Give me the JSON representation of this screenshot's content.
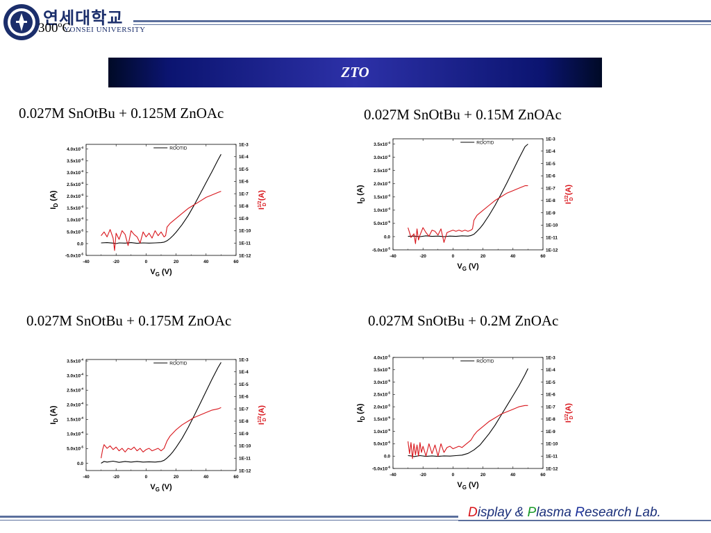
{
  "header": {
    "university_kr": "연세대학교",
    "university_en": "YONSEI UNIVERSITY",
    "temperature": "300ºC",
    "banner_title": "ZTO"
  },
  "footer": {
    "lab_d": "D",
    "lab_isplay": "isplay & ",
    "lab_p": "P",
    "lab_lasma": "lasma ",
    "lab_r": "R",
    "lab_esearch": "esearch Lab."
  },
  "colors": {
    "id_curve": "#000000",
    "sqrt_curve": "#d8141a",
    "banner": "#2d31a8",
    "accent": "#1a2f7a"
  },
  "chart_data": [
    {
      "type": "line",
      "title": "0.027M SnOtBu + 0.125M ZnOAc",
      "xlabel_main": "V",
      "xlabel_sub": "G",
      "xlabel_unit": " (V)",
      "ylabel_main": "I",
      "ylabel_sub": "D",
      "ylabel_unit": " (A)",
      "y2label_main": "I",
      "y2label_sup": "1/2",
      "y2label_sub": "D",
      "y2label_unit": " (A)",
      "legend": "ROOTID",
      "xlim": [
        -40,
        60
      ],
      "ylim": [
        -5e-05,
        0.00042
      ],
      "x_ticks": [
        -40,
        -20,
        0,
        20,
        40,
        60
      ],
      "y_ticks": [
        -5e-05,
        0,
        5e-05,
        0.0001,
        0.00015,
        0.0002,
        0.00025,
        0.0003,
        0.00035,
        0.0004
      ],
      "y_tick_labels": [
        {
          "m": "-5.0x10",
          "e": "-5"
        },
        {
          "m": "0.0",
          "e": ""
        },
        {
          "m": "5.0x10",
          "e": "-5"
        },
        {
          "m": "1.0x10",
          "e": "-4"
        },
        {
          "m": "1.5x10",
          "e": "-4"
        },
        {
          "m": "2.0x10",
          "e": "-4"
        },
        {
          "m": "2.5x10",
          "e": "-4"
        },
        {
          "m": "3.0x10",
          "e": "-4"
        },
        {
          "m": "3.5x10",
          "e": "-4"
        },
        {
          "m": "4.0x10",
          "e": "-4"
        }
      ],
      "y2_exps": [
        -12,
        -3
      ],
      "y2_tick_labels": [
        "1E-12",
        "1E-11",
        "1E-10",
        "1E-9",
        "1E-8",
        "1E-7",
        "1E-6",
        "1E-5",
        "1E-4",
        "1E-3"
      ],
      "series": [
        {
          "name": "ID (linear)",
          "axis": "left",
          "color": "#000000",
          "x": [
            -30,
            -26,
            -22,
            -20,
            -18,
            -14,
            -10,
            -6,
            -2,
            2,
            6,
            10,
            12,
            14,
            16,
            18,
            20,
            24,
            28,
            32,
            36,
            40,
            44,
            48,
            50
          ],
          "y": [
            3e-06,
            4e-06,
            2e-06,
            0,
            3e-06,
            2e-06,
            4e-06,
            1e-06,
            3e-06,
            2e-06,
            3e-06,
            4e-06,
            6e-06,
            1.2e-05,
            2.2e-05,
            3.4e-05,
            4.8e-05,
            8e-05,
            0.000118,
            0.000162,
            0.00021,
            0.000258,
            0.000305,
            0.000355,
            0.000378
          ]
        },
        {
          "name": "ID^1/2 (log)",
          "axis": "right",
          "color": "#d8141a",
          "x": [
            -30,
            -28,
            -26,
            -24,
            -22,
            -21,
            -20,
            -18,
            -16,
            -14,
            -12,
            -10,
            -8,
            -6,
            -4,
            -2,
            0,
            2,
            4,
            6,
            8,
            10,
            12,
            13,
            14,
            16,
            20,
            24,
            28,
            32,
            36,
            40,
            44,
            48,
            50
          ],
          "y": [
            -10.4,
            -10.1,
            -10.5,
            -9.9,
            -10.6,
            -11.6,
            -10.2,
            -10.7,
            -10.0,
            -10.3,
            -11.2,
            -10.0,
            -10.3,
            -10.5,
            -11.0,
            -10.1,
            -10.5,
            -10.2,
            -10.6,
            -10.0,
            -10.4,
            -10.1,
            -10.5,
            -10.4,
            -9.7,
            -9.4,
            -9.0,
            -8.6,
            -8.2,
            -7.9,
            -7.6,
            -7.3,
            -7.1,
            -6.9,
            -6.8
          ]
        }
      ]
    },
    {
      "type": "line",
      "title": "0.027M SnOtBu + 0.15M ZnOAc",
      "xlabel_main": "V",
      "xlabel_sub": "G",
      "xlabel_unit": " (V)",
      "ylabel_main": "I",
      "ylabel_sub": "D",
      "ylabel_unit": " (A)",
      "y2label_main": "I",
      "y2label_sup": "1/2",
      "y2label_sub": "D",
      "y2label_unit": " (A)",
      "legend": "ROOTID",
      "xlim": [
        -40,
        60
      ],
      "ylim": [
        -5e-05,
        0.00037
      ],
      "x_ticks": [
        -40,
        -20,
        0,
        20,
        40,
        60
      ],
      "y_ticks": [
        -5e-05,
        0,
        5e-05,
        0.0001,
        0.00015,
        0.0002,
        0.00025,
        0.0003,
        0.00035
      ],
      "y_tick_labels": [
        {
          "m": "-5.0x10",
          "e": "-5"
        },
        {
          "m": "0.0",
          "e": ""
        },
        {
          "m": "5.0x10",
          "e": "-5"
        },
        {
          "m": "1.0x10",
          "e": "-4"
        },
        {
          "m": "1.5x10",
          "e": "-4"
        },
        {
          "m": "2.0x10",
          "e": "-4"
        },
        {
          "m": "2.5x10",
          "e": "-4"
        },
        {
          "m": "3.0x10",
          "e": "-4"
        },
        {
          "m": "3.5x10",
          "e": "-4"
        }
      ],
      "y2_exps": [
        -12,
        -3
      ],
      "y2_tick_labels": [
        "1E-12",
        "1E-11",
        "1E-10",
        "1E-9",
        "1E-8",
        "1E-7",
        "1E-6",
        "1E-5",
        "1E-4",
        "1E-3"
      ],
      "series": [
        {
          "name": "ID (linear)",
          "axis": "left",
          "color": "#000000",
          "x": [
            -30,
            -26,
            -22,
            -18,
            -14,
            -10,
            -6,
            -2,
            2,
            6,
            10,
            12,
            14,
            16,
            18,
            20,
            24,
            28,
            32,
            36,
            40,
            44,
            48,
            50
          ],
          "y": [
            1e-06,
            2e-06,
            0,
            3e-06,
            1e-06,
            2e-06,
            0,
            2e-06,
            1e-06,
            3e-06,
            2e-06,
            4e-06,
            9e-06,
            2e-05,
            3.2e-05,
            4.6e-05,
            8e-05,
            0.000118,
            0.00016,
            0.000204,
            0.00025,
            0.000296,
            0.00034,
            0.00035
          ]
        },
        {
          "name": "ID^1/2 (log)",
          "axis": "right",
          "color": "#d8141a",
          "x": [
            -30,
            -29,
            -28,
            -26,
            -25,
            -24,
            -23,
            -22,
            -20,
            -18,
            -16,
            -14,
            -12,
            -10,
            -8,
            -6,
            -4,
            -2,
            0,
            2,
            4,
            6,
            8,
            10,
            12,
            13,
            14,
            16,
            20,
            24,
            28,
            32,
            36,
            40,
            44,
            48,
            50
          ],
          "y": [
            -10.2,
            -10.6,
            -11.0,
            -10.7,
            -11.5,
            -10.3,
            -11.2,
            -10.8,
            -10.2,
            -10.6,
            -10.9,
            -10.4,
            -10.5,
            -10.8,
            -10.3,
            -11.4,
            -10.6,
            -10.5,
            -10.4,
            -10.5,
            -10.4,
            -10.5,
            -10.4,
            -10.5,
            -10.4,
            -10.3,
            -9.6,
            -9.2,
            -8.8,
            -8.4,
            -8.0,
            -7.7,
            -7.4,
            -7.2,
            -7.0,
            -6.8,
            -6.8
          ]
        }
      ]
    },
    {
      "type": "line",
      "title": "0.027M SnOtBu + 0.175M ZnOAc",
      "xlabel_main": "V",
      "xlabel_sub": "G",
      "xlabel_unit": " (V)",
      "ylabel_main": "I",
      "ylabel_sub": "D",
      "ylabel_unit": " (A)",
      "y2label_main": "I",
      "y2label_sup": "1/2",
      "y2label_sub": "D",
      "y2label_unit": " (A)",
      "legend": "ROOTID",
      "xlim": [
        -40,
        60
      ],
      "ylim": [
        -2.5e-05,
        0.000355
      ],
      "x_ticks": [
        -40,
        -20,
        0,
        20,
        40,
        60
      ],
      "y_ticks": [
        0,
        5e-05,
        0.0001,
        0.00015,
        0.0002,
        0.00025,
        0.0003,
        0.00035
      ],
      "y_tick_labels": [
        {
          "m": "0.0",
          "e": ""
        },
        {
          "m": "5.0x10",
          "e": "-5"
        },
        {
          "m": "1.0x10",
          "e": "-4"
        },
        {
          "m": "1.5x10",
          "e": "-4"
        },
        {
          "m": "2.0x10",
          "e": "-4"
        },
        {
          "m": "2.5x10",
          "e": "-4"
        },
        {
          "m": "3.0x10",
          "e": "-4"
        },
        {
          "m": "3.5x10",
          "e": "-4"
        }
      ],
      "y2_exps": [
        -12,
        -3
      ],
      "y2_tick_labels": [
        "1E-12",
        "1E-11",
        "1E-10",
        "1E-9",
        "1E-8",
        "1E-7",
        "1E-6",
        "1E-5",
        "1E-4",
        "1E-3"
      ],
      "series": [
        {
          "name": "ID (linear)",
          "axis": "left",
          "color": "#000000",
          "x": [
            -30,
            -28,
            -26,
            -22,
            -18,
            -14,
            -10,
            -6,
            -2,
            2,
            6,
            10,
            12,
            14,
            16,
            18,
            20,
            24,
            28,
            32,
            36,
            40,
            44,
            48,
            50
          ],
          "y": [
            0,
            6e-06,
            4e-06,
            7e-06,
            3e-06,
            6e-06,
            4e-06,
            6e-06,
            4e-06,
            5e-06,
            4e-06,
            6e-06,
            1e-05,
            1.8e-05,
            2.8e-05,
            4e-05,
            5.4e-05,
            8.5e-05,
            0.000122,
            0.000162,
            0.000204,
            0.000246,
            0.000288,
            0.000328,
            0.000345
          ]
        },
        {
          "name": "ID^1/2 (log)",
          "axis": "right",
          "color": "#d8141a",
          "x": [
            -30,
            -29,
            -28,
            -26,
            -24,
            -22,
            -20,
            -18,
            -16,
            -14,
            -12,
            -10,
            -8,
            -6,
            -4,
            -2,
            0,
            2,
            4,
            6,
            8,
            10,
            12,
            14,
            16,
            20,
            24,
            28,
            32,
            36,
            40,
            44,
            48,
            50
          ],
          "y": [
            -11.0,
            -10.3,
            -9.9,
            -10.2,
            -10.0,
            -10.3,
            -10.1,
            -10.4,
            -10.2,
            -10.5,
            -10.2,
            -10.3,
            -10.1,
            -10.4,
            -10.2,
            -10.5,
            -10.3,
            -10.2,
            -10.4,
            -10.3,
            -10.2,
            -10.4,
            -10.2,
            -9.6,
            -9.2,
            -8.7,
            -8.3,
            -8.0,
            -7.7,
            -7.5,
            -7.3,
            -7.1,
            -7.0,
            -6.9
          ]
        }
      ]
    },
    {
      "type": "line",
      "title": "0.027M SnOtBu + 0.2M ZnOAc",
      "xlabel_main": "V",
      "xlabel_sub": "G",
      "xlabel_unit": " (V)",
      "ylabel_main": "I",
      "ylabel_sub": "D",
      "ylabel_unit": " (A)",
      "y2label_main": "I",
      "y2label_sup": "1/2",
      "y2label_sub": "D",
      "y2label_unit": " (A)",
      "legend": "ROOTID",
      "xlim": [
        -40,
        60
      ],
      "ylim": [
        -5e-06,
        4e-05
      ],
      "x_ticks": [
        -40,
        -20,
        0,
        20,
        40,
        60
      ],
      "y_ticks": [
        -5e-06,
        0,
        5e-06,
        1e-05,
        1.5e-05,
        2e-05,
        2.5e-05,
        3e-05,
        3.5e-05,
        4e-05
      ],
      "y_tick_labels": [
        {
          "m": "-5.0x10",
          "e": "-6"
        },
        {
          "m": "0.0",
          "e": ""
        },
        {
          "m": "5.0x10",
          "e": "-6"
        },
        {
          "m": "1.0x10",
          "e": "-5"
        },
        {
          "m": "1.5x10",
          "e": "-5"
        },
        {
          "m": "2.0x10",
          "e": "-5"
        },
        {
          "m": "2.5x10",
          "e": "-5"
        },
        {
          "m": "3.0x10",
          "e": "-5"
        },
        {
          "m": "3.5x10",
          "e": "-5"
        },
        {
          "m": "4.0x10",
          "e": "-5"
        }
      ],
      "y2_exps": [
        -12,
        -3
      ],
      "y2_tick_labels": [
        "1E-12",
        "1E-11",
        "1E-10",
        "1E-9",
        "1E-8",
        "1E-7",
        "1E-6",
        "1E-5",
        "1E-4",
        "1E-3"
      ],
      "series": [
        {
          "name": "ID (linear)",
          "axis": "left",
          "color": "#000000",
          "x": [
            -30,
            -28,
            -26,
            -22,
            -18,
            -14,
            -10,
            -6,
            -2,
            2,
            6,
            10,
            14,
            18,
            20,
            24,
            28,
            32,
            36,
            40,
            44,
            48,
            50
          ],
          "y": [
            2e-07,
            1e-07,
            -2e-07,
            2e-07,
            -1e-07,
            1e-07,
            -1e-07,
            1e-07,
            0,
            2e-07,
            4e-07,
            1.1e-06,
            2.5e-06,
            4.5e-06,
            6e-06,
            9e-06,
            1.25e-05,
            1.65e-05,
            2.05e-05,
            2.45e-05,
            2.85e-05,
            3.3e-05,
            3.55e-05
          ]
        },
        {
          "name": "ID^1/2 (log)",
          "axis": "right",
          "color": "#d8141a",
          "x": [
            -30,
            -29,
            -28,
            -27,
            -26,
            -25,
            -24,
            -23,
            -22,
            -21,
            -20,
            -18,
            -16,
            -14,
            -12,
            -10,
            -8,
            -6,
            -4,
            -2,
            0,
            2,
            4,
            6,
            8,
            10,
            12,
            14,
            16,
            20,
            24,
            28,
            32,
            36,
            40,
            44,
            48,
            50
          ],
          "y": [
            -9.8,
            -10.8,
            -9.9,
            -11.2,
            -10.0,
            -10.9,
            -10.1,
            -11.0,
            -9.9,
            -10.7,
            -10.2,
            -11.0,
            -10.0,
            -10.8,
            -10.1,
            -11.0,
            -10.0,
            -10.7,
            -10.3,
            -10.2,
            -10.4,
            -10.3,
            -10.2,
            -10.3,
            -10.1,
            -9.9,
            -9.7,
            -9.3,
            -9.0,
            -8.6,
            -8.2,
            -7.9,
            -7.6,
            -7.4,
            -7.2,
            -7.0,
            -6.9,
            -6.9
          ]
        }
      ]
    }
  ]
}
